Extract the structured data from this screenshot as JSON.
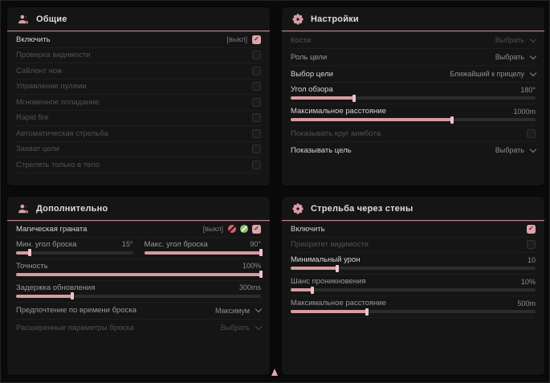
{
  "colors": {
    "accent": "#dea3a9",
    "accent_line": "#b8828a",
    "panel_bg": "#151515",
    "page_bg": "#0a0a0a"
  },
  "panels": {
    "general": {
      "title": "Общие",
      "rows": [
        {
          "label": "Включить",
          "state": "[выкл]",
          "checked": true
        },
        {
          "label": "Проверка видимости",
          "checked": false
        },
        {
          "label": "Сайлент нож",
          "checked": false
        },
        {
          "label": "Управление пулями",
          "checked": false
        },
        {
          "label": "Мгновенное попадание",
          "checked": false
        },
        {
          "label": "Rapid fire",
          "checked": false
        },
        {
          "label": "Автоматическая стрельба",
          "checked": false
        },
        {
          "label": "Захват цели",
          "checked": false
        },
        {
          "label": "Стрелять только в тело",
          "checked": false
        }
      ]
    },
    "settings": {
      "title": "Настройки",
      "bones": {
        "label": "Кости",
        "value": "Выбрать"
      },
      "target_role": {
        "label": "Роль цели",
        "value": "Выбрать"
      },
      "target_select": {
        "label": "Выбор цели",
        "value": "Ближайший к прицелу"
      },
      "fov": {
        "label": "Угол обзора",
        "value": "180°",
        "fill_pct": 26
      },
      "max_distance": {
        "label": "Максимальное расстояние",
        "value": "1000m",
        "fill_pct": 66
      },
      "show_circle": {
        "label": "Показывать круг аимбота",
        "checked": false
      },
      "show_target": {
        "label": "Показывать цель",
        "value": "Выбрать"
      }
    },
    "additional": {
      "title": "Дополнительно",
      "magic_grenade": {
        "label": "Магическая граната",
        "state": "[выкл]",
        "checked": true
      },
      "min_angle": {
        "label": "Мин. угол броска",
        "value": "15°",
        "fill_pct": 12
      },
      "max_angle": {
        "label": "Макс. угол броска",
        "value": "90°",
        "fill_pct": 100
      },
      "accuracy": {
        "label": "Точность",
        "value": "100%",
        "fill_pct": 100
      },
      "update_delay": {
        "label": "Задержка обновления",
        "value": "300ms",
        "fill_pct": 23
      },
      "throw_time": {
        "label": "Предпочтение по времени броска",
        "value": "Максимум"
      },
      "advanced": {
        "label": "Расширенные параметры броска",
        "value": "Выбрать"
      }
    },
    "walls": {
      "title": "Стрельба через стены",
      "enable": {
        "label": "Включить",
        "checked": true
      },
      "visibility_priority": {
        "label": "Приоритет видимости",
        "checked": false
      },
      "min_damage": {
        "label": "Минимальный урон",
        "value": "10",
        "fill_pct": 19
      },
      "penetration_chance": {
        "label": "Шанс проникновения",
        "value": "10%",
        "fill_pct": 9
      },
      "max_distance": {
        "label": "Максимальное расстояние",
        "value": "500m",
        "fill_pct": 31
      }
    }
  }
}
